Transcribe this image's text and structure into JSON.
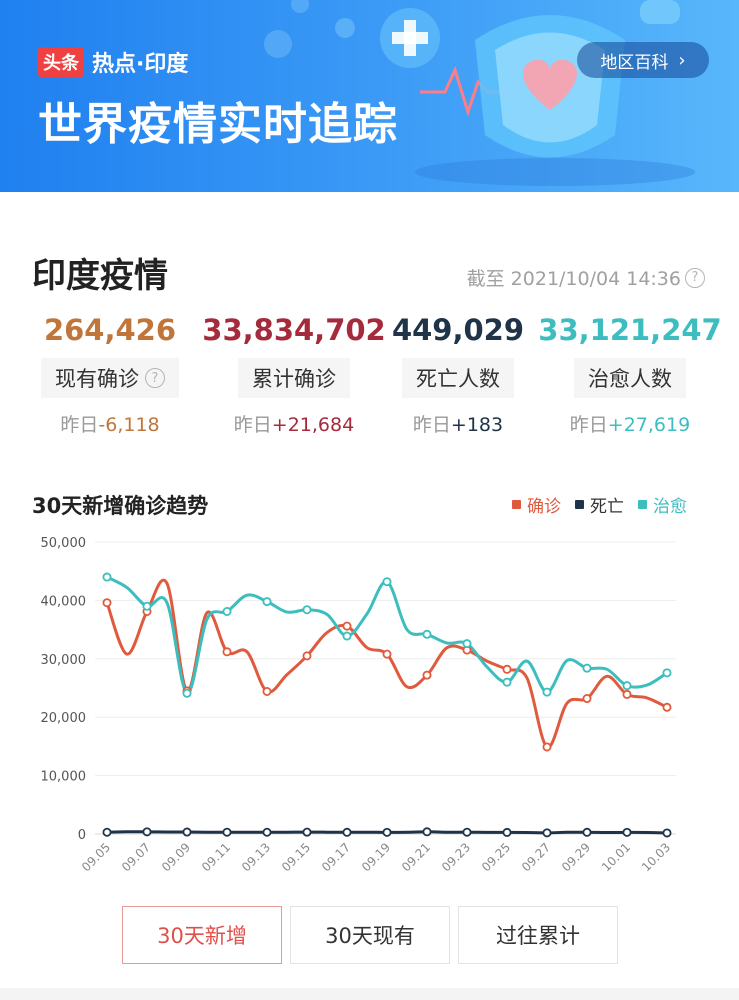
{
  "banner": {
    "brand_badge": "头条",
    "brand_text": "热点·印度",
    "title": "世界疫情实时追踪",
    "region_button": "地区百科"
  },
  "section": {
    "title": "印度疫情",
    "as_of": "截至 2021/10/04 14:36"
  },
  "stats": [
    {
      "value": "264,426",
      "label": "现有确诊",
      "delta_prefix": "昨日",
      "delta": "-6,118",
      "color": "#c0763a",
      "has_help": true
    },
    {
      "value": "33,834,702",
      "label": "累计确诊",
      "delta_prefix": "昨日",
      "delta": "+21,684",
      "color": "#a52b3c",
      "has_help": false
    },
    {
      "value": "449,029",
      "label": "死亡人数",
      "delta_prefix": "昨日",
      "delta": "+183",
      "color": "#1f3448",
      "has_help": false
    },
    {
      "value": "33,121,247",
      "label": "治愈人数",
      "delta_prefix": "昨日",
      "delta": "+27,619",
      "color": "#3dbdbf",
      "has_help": false
    }
  ],
  "chart_data": {
    "type": "line",
    "title": "30天新增确诊趋势",
    "x": [
      "09.05",
      "09.06",
      "09.07",
      "09.08",
      "09.09",
      "09.10",
      "09.11",
      "09.12",
      "09.13",
      "09.14",
      "09.15",
      "09.16",
      "09.17",
      "09.18",
      "09.19",
      "09.20",
      "09.21",
      "09.22",
      "09.23",
      "09.24",
      "09.25",
      "09.26",
      "09.27",
      "09.28",
      "09.29",
      "09.30",
      "10.01",
      "10.02",
      "10.03"
    ],
    "x_tick_labels": [
      "09.05",
      "09.07",
      "09.09",
      "09.11",
      "09.13",
      "09.15",
      "09.17",
      "09.19",
      "09.21",
      "09.23",
      "09.25",
      "09.27",
      "09.29",
      "10.01",
      "10.03"
    ],
    "y_ticks": [
      "50,000",
      "40,000",
      "30,000",
      "20,000",
      "10,000",
      "0"
    ],
    "ylim": [
      0,
      50000
    ],
    "grid": true,
    "legend_position": "top-right",
    "series": [
      {
        "name": "确诊",
        "color": "#e05a3d",
        "values": [
          39600,
          30800,
          38100,
          42900,
          24500,
          37900,
          31200,
          31200,
          24400,
          27300,
          30500,
          34500,
          35600,
          31900,
          30800,
          25200,
          27200,
          31900,
          31500,
          29600,
          28200,
          26700,
          14900,
          22400,
          23200,
          27000,
          23900,
          23300,
          21700
        ]
      },
      {
        "name": "死亡",
        "color": "#1f3448",
        "values": [
          300,
          380,
          370,
          340,
          340,
          310,
          310,
          300,
          300,
          310,
          320,
          310,
          290,
          300,
          280,
          290,
          380,
          300,
          310,
          270,
          270,
          250,
          200,
          290,
          290,
          250,
          280,
          260,
          180
        ]
      },
      {
        "name": "治愈",
        "color": "#3cbdbe",
        "values": [
          44000,
          42200,
          39000,
          39600,
          24100,
          36800,
          38100,
          40900,
          39800,
          38000,
          38400,
          37600,
          33900,
          37700,
          43200,
          35000,
          34200,
          32700,
          32600,
          28600,
          26000,
          29600,
          24300,
          29700,
          28400,
          28200,
          25400,
          25500,
          27600
        ]
      }
    ]
  },
  "tabs": [
    {
      "label": "30天新增",
      "active": true
    },
    {
      "label": "30天现有",
      "active": false
    },
    {
      "label": "过往累计",
      "active": false
    }
  ]
}
